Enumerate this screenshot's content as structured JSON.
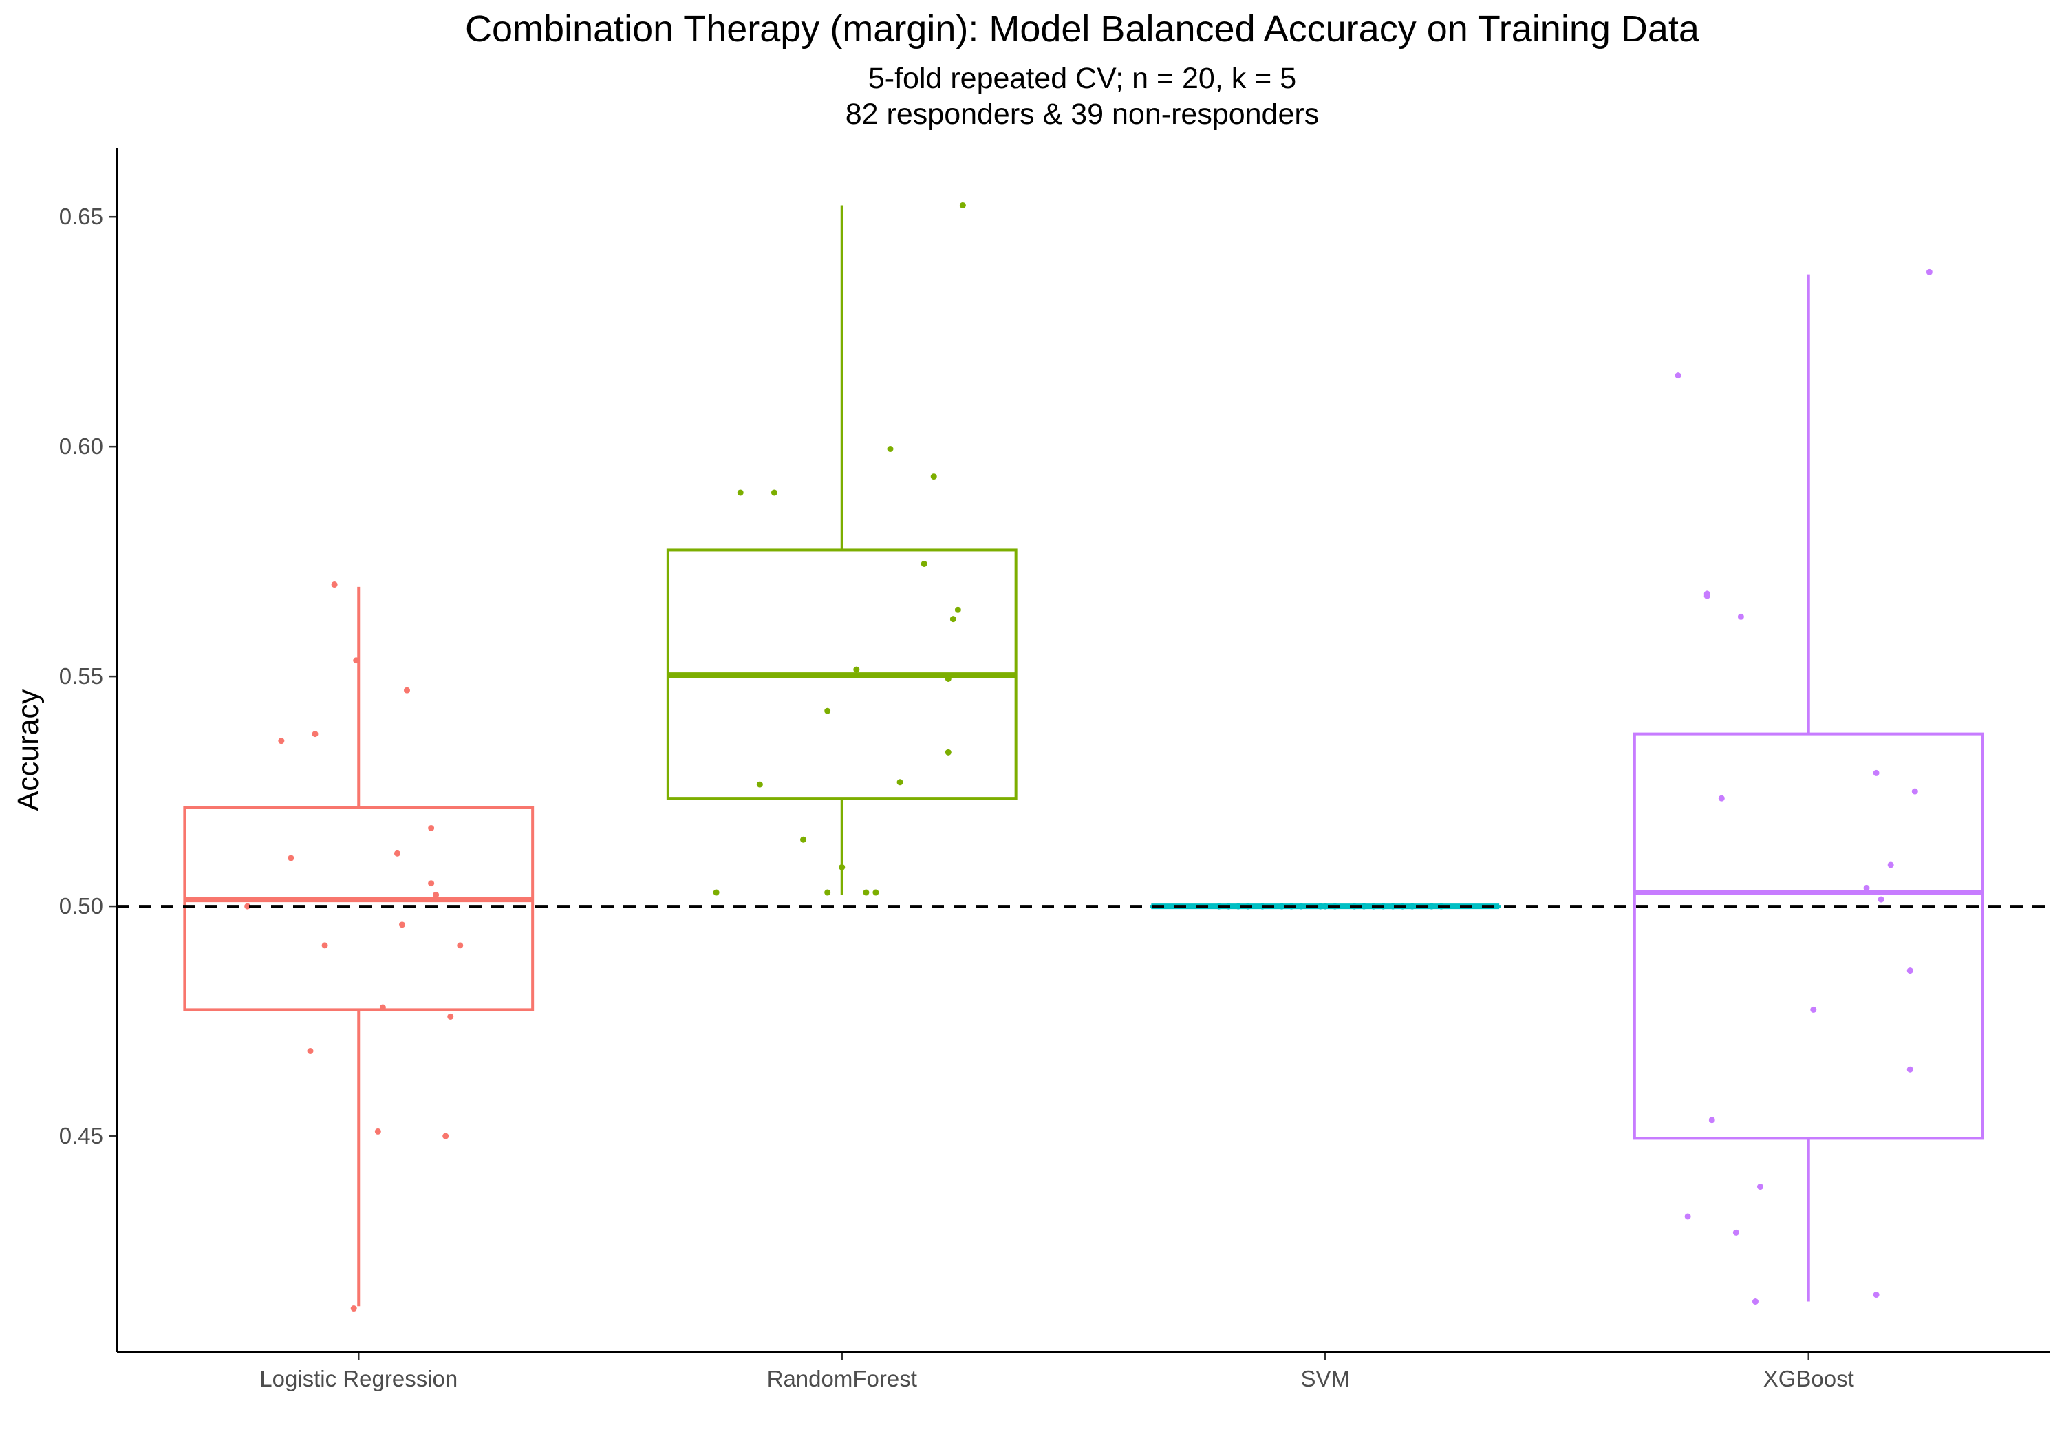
{
  "chart_data": {
    "type": "box",
    "title": "Combination Therapy (margin): Model Balanced Accuracy on Training Data",
    "subtitle_lines": [
      "5-fold repeated CV; n = 20, k = 5",
      "82 responders & 39 non-responders"
    ],
    "xlabel": "",
    "ylabel": "Accuracy",
    "ylim": [
      0.403,
      0.665
    ],
    "y_ticks": [
      0.45,
      0.5,
      0.55,
      0.6,
      0.65
    ],
    "y_tick_labels": [
      "0.45",
      "0.50",
      "0.55",
      "0.60",
      "0.65"
    ],
    "reference_line": {
      "y": 0.5,
      "style": "dashed",
      "color": "#000000"
    },
    "grid": false,
    "legend": "none",
    "categories": [
      "Logistic Regression",
      "RandomForest",
      "SVM",
      "XGBoost"
    ],
    "boxes": [
      {
        "category": "Logistic Regression",
        "color": "#F8766D",
        "min": 0.413,
        "q1": 0.4775,
        "median": 0.5015,
        "q3": 0.5215,
        "max": 0.5695
      },
      {
        "category": "RandomForest",
        "color": "#7CAE00",
        "min": 0.5025,
        "q1": 0.5235,
        "median": 0.5503,
        "q3": 0.5775,
        "max": 0.6525
      },
      {
        "category": "SVM",
        "color": "#00BFC4",
        "min": 0.5,
        "q1": 0.5,
        "median": 0.5,
        "q3": 0.5,
        "max": 0.5
      },
      {
        "category": "XGBoost",
        "color": "#C77CFF",
        "min": 0.414,
        "q1": 0.4495,
        "median": 0.503,
        "q3": 0.5375,
        "max": 0.6375
      }
    ],
    "points": [
      {
        "category": "Logistic Regression",
        "values": [
          0.57,
          0.5535,
          0.547,
          0.5375,
          0.536,
          0.517,
          0.5115,
          0.5105,
          0.505,
          0.5025,
          0.5,
          0.496,
          0.4915,
          0.4915,
          0.478,
          0.476,
          0.4685,
          0.451,
          0.45,
          0.4125
        ],
        "jitter": [
          -0.05,
          -0.005,
          0.1,
          -0.09,
          -0.16,
          0.15,
          0.08,
          -0.14,
          0.15,
          0.16,
          -0.23,
          0.09,
          -0.07,
          0.21,
          0.05,
          0.19,
          -0.1,
          0.04,
          0.18,
          -0.01
        ]
      },
      {
        "category": "RandomForest",
        "values": [
          0.6525,
          0.5995,
          0.5935,
          0.59,
          0.59,
          0.5745,
          0.5645,
          0.5625,
          0.5515,
          0.5495,
          0.5425,
          0.5335,
          0.527,
          0.5265,
          0.5145,
          0.5085,
          0.503,
          0.503,
          0.503,
          0.503
        ],
        "jitter": [
          0.25,
          0.1,
          0.19,
          -0.21,
          -0.14,
          0.17,
          0.24,
          0.23,
          0.03,
          0.22,
          -0.03,
          0.22,
          0.12,
          -0.17,
          -0.08,
          0.0,
          -0.26,
          -0.03,
          0.07,
          0.05
        ]
      },
      {
        "category": "SVM",
        "values": [
          0.5,
          0.5,
          0.5,
          0.5,
          0.5,
          0.5,
          0.5,
          0.5,
          0.5,
          0.5,
          0.5,
          0.5,
          0.5,
          0.5,
          0.5,
          0.5,
          0.5,
          0.5,
          0.5,
          0.5
        ],
        "jitter": [
          -0.22,
          -0.18,
          -0.13,
          -0.09,
          -0.05,
          -0.01,
          0.02,
          0.06,
          0.1,
          0.14,
          0.18,
          0.22,
          -0.2,
          -0.16,
          -0.07,
          0.0,
          0.08,
          0.16,
          0.24,
          0.12
        ]
      },
      {
        "category": "XGBoost",
        "values": [
          0.638,
          0.6155,
          0.568,
          0.5675,
          0.563,
          0.529,
          0.525,
          0.5235,
          0.509,
          0.504,
          0.5015,
          0.486,
          0.4775,
          0.4645,
          0.4535,
          0.439,
          0.4325,
          0.429,
          0.4155,
          0.414
        ],
        "jitter": [
          0.25,
          -0.27,
          -0.21,
          -0.21,
          -0.14,
          0.14,
          0.22,
          -0.18,
          0.17,
          0.12,
          0.15,
          0.21,
          0.01,
          0.21,
          -0.2,
          -0.1,
          -0.25,
          -0.15,
          0.14,
          -0.11
        ]
      }
    ]
  }
}
